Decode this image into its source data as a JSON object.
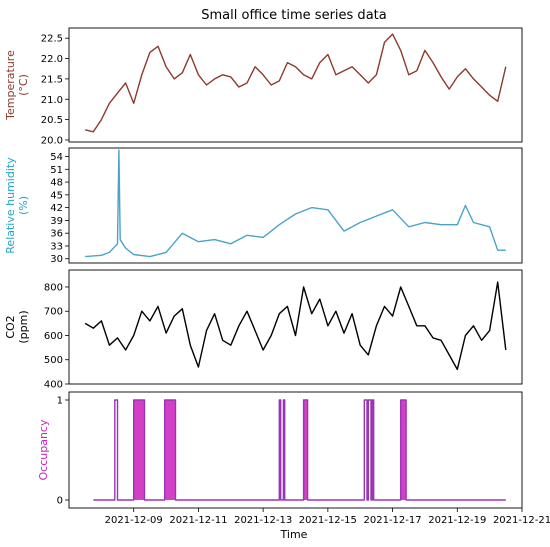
{
  "figure": {
    "title": "Small office time series data",
    "xlabel": "Time"
  },
  "x_ticks": [
    "2021-12-09",
    "2021-12-11",
    "2021-12-13",
    "2021-12-15",
    "2021-12-17",
    "2021-12-19",
    "2021-12-21"
  ],
  "colors": {
    "temperature": "#8c3a2e",
    "humidity": "#4aa3c8",
    "humidity_label": "#21a5c8",
    "co2": "#000000",
    "occupancy": "#cc1fbb",
    "occupancy_line": "#9a35b5"
  },
  "chart_data": [
    {
      "type": "line",
      "name": "temperature",
      "ylabel": "Temperature\n(°C)",
      "ylim": [
        19.95,
        22.75
      ],
      "yticks": [
        "20.0",
        "20.5",
        "21.0",
        "21.5",
        "22.0",
        "22.5"
      ],
      "x_range": [
        "2021-12-07T00:00",
        "2021-12-21T00:00"
      ],
      "x": [
        "2021-12-07T12:00",
        "2021-12-07T18:00",
        "2021-12-08T00:00",
        "2021-12-08T06:00",
        "2021-12-08T12:00",
        "2021-12-08T18:00",
        "2021-12-09T00:00",
        "2021-12-09T06:00",
        "2021-12-09T12:00",
        "2021-12-09T18:00",
        "2021-12-10T00:00",
        "2021-12-10T06:00",
        "2021-12-10T12:00",
        "2021-12-10T18:00",
        "2021-12-11T00:00",
        "2021-12-11T06:00",
        "2021-12-11T12:00",
        "2021-12-11T18:00",
        "2021-12-12T00:00",
        "2021-12-12T06:00",
        "2021-12-12T12:00",
        "2021-12-12T18:00",
        "2021-12-13T00:00",
        "2021-12-13T06:00",
        "2021-12-13T12:00",
        "2021-12-13T18:00",
        "2021-12-14T00:00",
        "2021-12-14T06:00",
        "2021-12-14T12:00",
        "2021-12-14T18:00",
        "2021-12-15T00:00",
        "2021-12-15T06:00",
        "2021-12-15T12:00",
        "2021-12-15T18:00",
        "2021-12-16T00:00",
        "2021-12-16T06:00",
        "2021-12-16T12:00",
        "2021-12-16T18:00",
        "2021-12-17T00:00",
        "2021-12-17T06:00",
        "2021-12-17T12:00",
        "2021-12-17T18:00",
        "2021-12-18T00:00",
        "2021-12-18T06:00",
        "2021-12-18T12:00",
        "2021-12-18T18:00",
        "2021-12-19T00:00",
        "2021-12-19T06:00",
        "2021-12-19T12:00",
        "2021-12-19T18:00",
        "2021-12-20T00:00",
        "2021-12-20T06:00",
        "2021-12-20T12:00"
      ],
      "values": [
        20.25,
        20.2,
        20.5,
        20.9,
        21.15,
        21.4,
        20.9,
        21.6,
        22.15,
        22.3,
        21.8,
        21.5,
        21.65,
        22.1,
        21.6,
        21.35,
        21.5,
        21.6,
        21.55,
        21.3,
        21.4,
        21.8,
        21.6,
        21.35,
        21.45,
        21.9,
        21.8,
        21.6,
        21.5,
        21.9,
        22.1,
        21.6,
        21.7,
        21.8,
        21.6,
        21.4,
        21.6,
        22.4,
        22.6,
        22.2,
        21.6,
        21.7,
        22.2,
        21.9,
        21.55,
        21.25,
        21.55,
        21.75,
        21.5,
        21.3,
        21.1,
        20.95,
        21.8
      ]
    },
    {
      "type": "line",
      "name": "relative humidity",
      "ylabel": "Relative humidity\n(%)",
      "ylim": [
        29,
        56
      ],
      "yticks": [
        "30",
        "33",
        "36",
        "39",
        "42",
        "45",
        "48",
        "51",
        "54"
      ],
      "x_range": [
        "2021-12-07T00:00",
        "2021-12-21T00:00"
      ],
      "x": [
        "2021-12-07T12:00",
        "2021-12-08T00:00",
        "2021-12-08T06:00",
        "2021-12-08T12:00",
        "2021-12-08T13:00",
        "2021-12-08T14:00",
        "2021-12-08T18:00",
        "2021-12-09T00:00",
        "2021-12-09T12:00",
        "2021-12-10T00:00",
        "2021-12-10T12:00",
        "2021-12-11T00:00",
        "2021-12-11T12:00",
        "2021-12-12T00:00",
        "2021-12-12T12:00",
        "2021-12-13T00:00",
        "2021-12-13T12:00",
        "2021-12-14T00:00",
        "2021-12-14T12:00",
        "2021-12-15T00:00",
        "2021-12-15T12:00",
        "2021-12-16T00:00",
        "2021-12-16T12:00",
        "2021-12-17T00:00",
        "2021-12-17T12:00",
        "2021-12-18T00:00",
        "2021-12-18T12:00",
        "2021-12-19T00:00",
        "2021-12-19T06:00",
        "2021-12-19T12:00",
        "2021-12-20T00:00",
        "2021-12-20T06:00",
        "2021-12-20T12:00"
      ],
      "values": [
        30.5,
        30.8,
        31.5,
        33.5,
        55.5,
        34.5,
        32.5,
        31.0,
        30.5,
        31.5,
        36.0,
        34.0,
        34.5,
        33.5,
        35.5,
        35.0,
        38.0,
        40.5,
        42.0,
        41.5,
        36.5,
        38.5,
        40.0,
        41.5,
        37.5,
        38.5,
        38.0,
        38.0,
        42.5,
        38.5,
        37.5,
        32.0,
        32.0
      ]
    },
    {
      "type": "line",
      "name": "CO2",
      "ylabel": "CO2\n(ppm)",
      "ylim": [
        400,
        870
      ],
      "yticks": [
        "400",
        "500",
        "600",
        "700",
        "800"
      ],
      "x_range": [
        "2021-12-07T00:00",
        "2021-12-21T00:00"
      ],
      "x": [
        "2021-12-07T12:00",
        "2021-12-07T18:00",
        "2021-12-08T00:00",
        "2021-12-08T06:00",
        "2021-12-08T12:00",
        "2021-12-08T18:00",
        "2021-12-09T00:00",
        "2021-12-09T06:00",
        "2021-12-09T12:00",
        "2021-12-09T18:00",
        "2021-12-10T00:00",
        "2021-12-10T06:00",
        "2021-12-10T12:00",
        "2021-12-10T18:00",
        "2021-12-11T00:00",
        "2021-12-11T06:00",
        "2021-12-11T12:00",
        "2021-12-11T18:00",
        "2021-12-12T00:00",
        "2021-12-12T06:00",
        "2021-12-12T12:00",
        "2021-12-12T18:00",
        "2021-12-13T00:00",
        "2021-12-13T06:00",
        "2021-12-13T12:00",
        "2021-12-13T18:00",
        "2021-12-14T00:00",
        "2021-12-14T06:00",
        "2021-12-14T12:00",
        "2021-12-14T18:00",
        "2021-12-15T00:00",
        "2021-12-15T06:00",
        "2021-12-15T12:00",
        "2021-12-15T18:00",
        "2021-12-16T00:00",
        "2021-12-16T06:00",
        "2021-12-16T12:00",
        "2021-12-16T18:00",
        "2021-12-17T00:00",
        "2021-12-17T06:00",
        "2021-12-17T12:00",
        "2021-12-17T18:00",
        "2021-12-18T00:00",
        "2021-12-18T06:00",
        "2021-12-18T12:00",
        "2021-12-18T18:00",
        "2021-12-19T00:00",
        "2021-12-19T06:00",
        "2021-12-19T12:00",
        "2021-12-19T18:00",
        "2021-12-20T00:00",
        "2021-12-20T06:00",
        "2021-12-20T12:00"
      ],
      "values": [
        650,
        630,
        660,
        560,
        590,
        540,
        600,
        700,
        660,
        720,
        610,
        680,
        710,
        560,
        470,
        620,
        690,
        580,
        560,
        640,
        700,
        620,
        540,
        600,
        690,
        720,
        600,
        800,
        690,
        750,
        640,
        700,
        610,
        690,
        560,
        520,
        640,
        720,
        680,
        800,
        720,
        640,
        640,
        590,
        580,
        520,
        460,
        600,
        640,
        580,
        620,
        820,
        540
      ]
    },
    {
      "type": "line",
      "name": "occupancy",
      "ylabel": "Occupancy",
      "ylim": [
        -0.08,
        1.08
      ],
      "yticks": [
        "0",
        "1"
      ],
      "x_range": [
        "2021-12-07T00:00",
        "2021-12-21T00:00"
      ],
      "occupied_intervals": [
        [
          "2021-12-08T10:00",
          "2021-12-08T12:00"
        ],
        [
          "2021-12-09T00:00",
          "2021-12-09T08:00"
        ],
        [
          "2021-12-09T23:00",
          "2021-12-10T07:00"
        ],
        [
          "2021-12-13T12:00",
          "2021-12-13T13:00"
        ],
        [
          "2021-12-13T15:00",
          "2021-12-13T16:00"
        ],
        [
          "2021-12-14T06:00",
          "2021-12-14T09:00"
        ],
        [
          "2021-12-16T03:00",
          "2021-12-16T05:00"
        ],
        [
          "2021-12-16T06:00",
          "2021-12-16T08:00"
        ],
        [
          "2021-12-16T09:00",
          "2021-12-16T10:00"
        ],
        [
          "2021-12-17T06:00",
          "2021-12-17T10:00"
        ]
      ]
    }
  ]
}
